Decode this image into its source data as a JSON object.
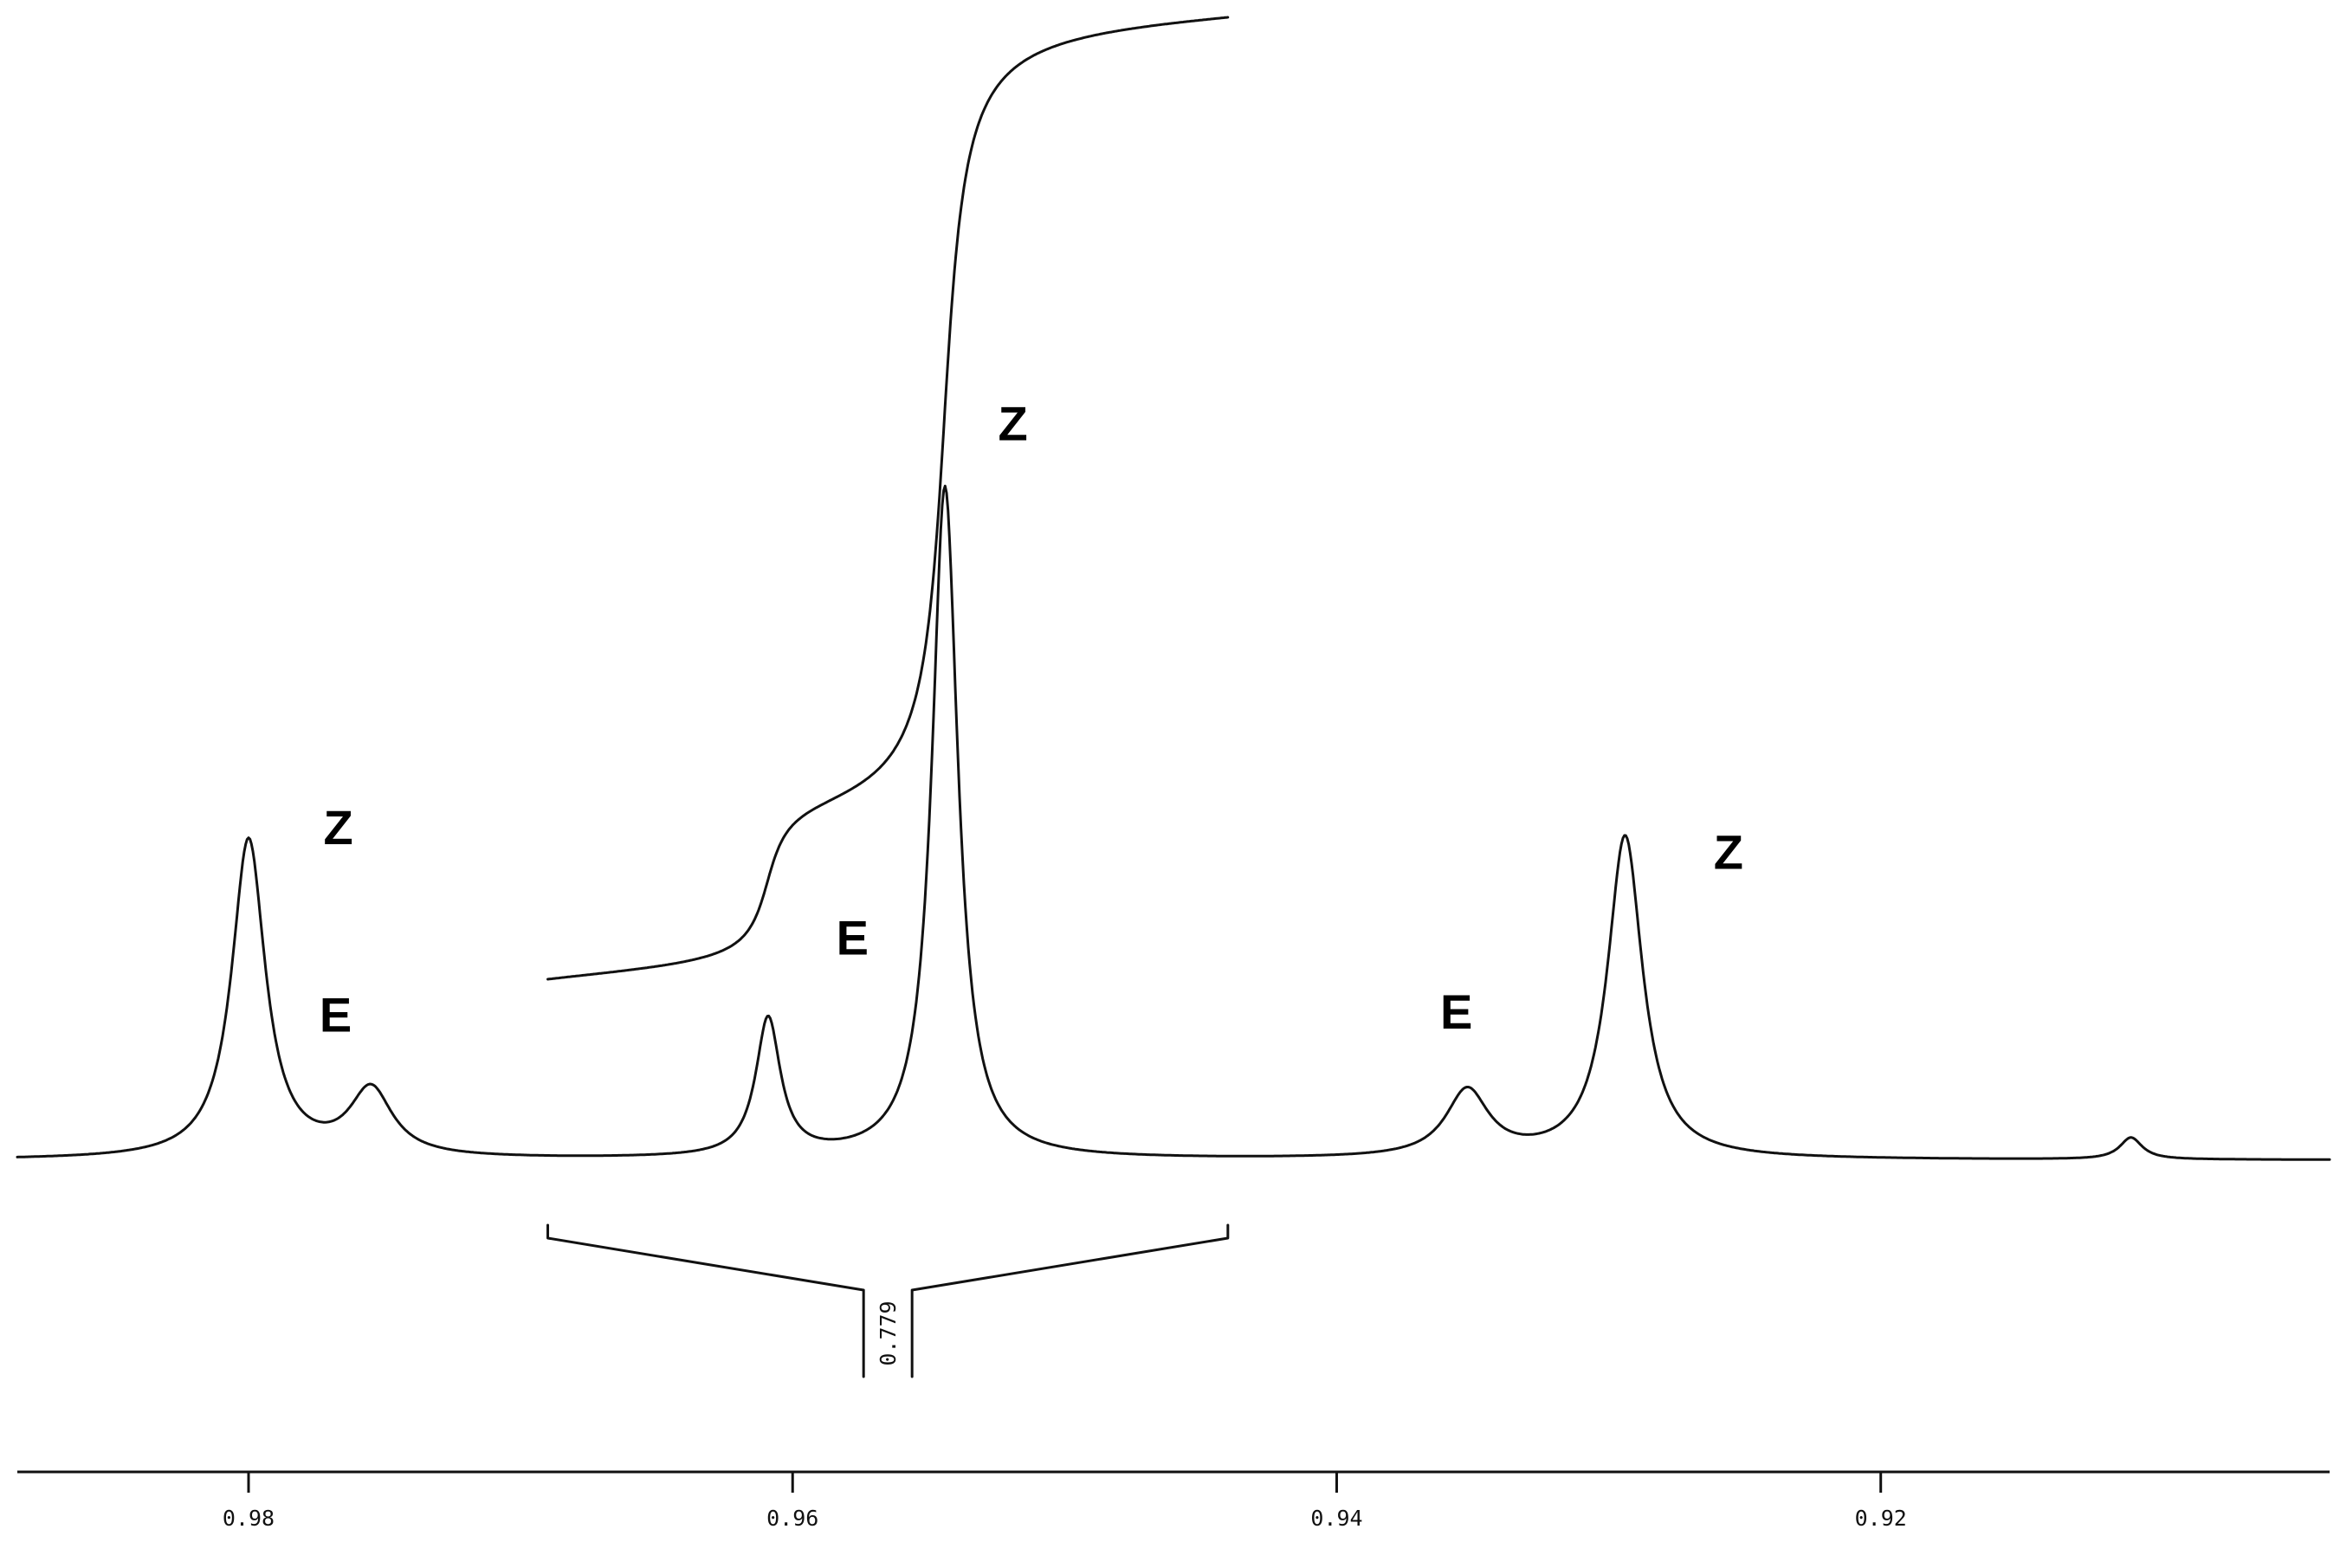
{
  "chart_data": {
    "type": "line",
    "title": "",
    "xlabel": "",
    "ylabel": "",
    "x_reversed": true,
    "xlim": [
      0.9885,
      0.9035
    ],
    "ylim": [
      0,
      1
    ],
    "grid": false,
    "x_ticks": [
      {
        "value": 0.98,
        "label": "0.98"
      },
      {
        "value": 0.96,
        "label": "0.96"
      },
      {
        "value": 0.94,
        "label": "0.94"
      },
      {
        "value": 0.92,
        "label": "0.92"
      }
    ],
    "peaks": [
      {
        "x": 0.9755,
        "height": 0.07,
        "width": 0.00095,
        "label": "E"
      },
      {
        "x": 0.98,
        "height": 0.335,
        "width": 0.00075,
        "label": "Z"
      },
      {
        "x": 0.9609,
        "height": 0.145,
        "width": 0.00055,
        "label": "E"
      },
      {
        "x": 0.9544,
        "height": 0.706,
        "width": 0.00058,
        "label": "Z"
      },
      {
        "x": 0.9352,
        "height": 0.07,
        "width": 0.00095,
        "label": "E"
      },
      {
        "x": 0.9294,
        "height": 0.339,
        "width": 0.00078,
        "label": "Z"
      },
      {
        "x": 0.9108,
        "height": 0.023,
        "width": 0.0005,
        "label": ""
      }
    ],
    "annotations": [
      {
        "x": 0.9768,
        "y": 0.135,
        "text": "E"
      },
      {
        "x": 0.9767,
        "y": 0.332,
        "text": "Z"
      },
      {
        "x": 0.9578,
        "y": 0.216,
        "text": "E"
      },
      {
        "x": 0.9519,
        "y": 0.756,
        "text": "Z"
      },
      {
        "x": 0.9356,
        "y": 0.138,
        "text": "E"
      },
      {
        "x": 0.9256,
        "y": 0.306,
        "text": "Z"
      }
    ],
    "integral": {
      "x_start": 0.969,
      "x_end": 0.944,
      "value": "0.779"
    }
  }
}
